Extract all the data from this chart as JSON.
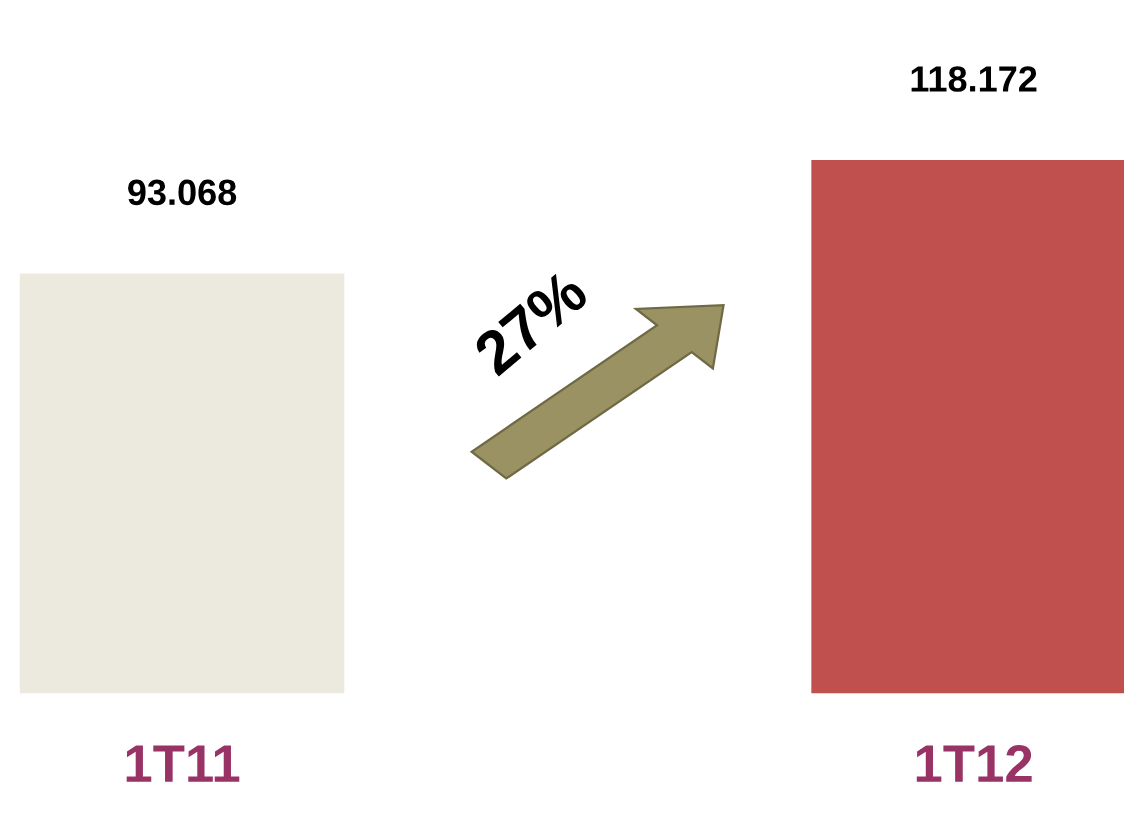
{
  "chart_data": {
    "type": "bar",
    "categories": [
      "1T11",
      "1T12"
    ],
    "values": [
      93.068,
      118.172
    ],
    "colors": [
      "#ece9de",
      "#c0504d"
    ],
    "data_labels": true,
    "annotations": [
      "27%"
    ]
  }
}
